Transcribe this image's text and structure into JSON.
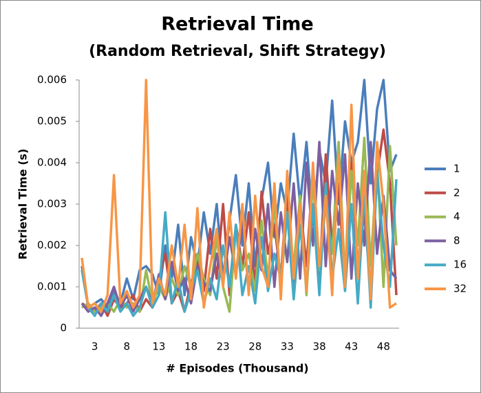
{
  "chart_data": {
    "type": "line",
    "title": "Retrieval Time",
    "subtitle": "(Random Retrieval, Shift Strategy)",
    "x_label": "# Episodes (Thousand)",
    "y_label": "Retrieval Time (s)",
    "categories": [
      null,
      null,
      "3",
      null,
      null,
      null,
      null,
      "8",
      null,
      null,
      null,
      null,
      "13",
      null,
      null,
      null,
      null,
      "18",
      null,
      null,
      null,
      null,
      "23",
      null,
      null,
      null,
      null,
      "28",
      null,
      null,
      null,
      null,
      "33",
      null,
      null,
      null,
      null,
      "38",
      null,
      null,
      null,
      null,
      "43",
      null,
      null,
      null,
      null,
      "48",
      null,
      null
    ],
    "ylim": [
      0,
      0.006
    ],
    "yticks": [
      0,
      0.001,
      0.002,
      0.003,
      0.004,
      0.005,
      0.006
    ],
    "grid": false,
    "legend": "right",
    "series": [
      {
        "name": "1",
        "color": "#4a7ebb",
        "values": [
          0.0015,
          0.0005,
          0.0006,
          0.0007,
          0.0005,
          0.0009,
          0.0006,
          0.0012,
          0.0007,
          0.0014,
          0.0015,
          0.0013,
          0.0008,
          0.002,
          0.0012,
          0.0025,
          0.0008,
          0.0022,
          0.0015,
          0.0028,
          0.0018,
          0.003,
          0.0012,
          0.0026,
          0.0037,
          0.002,
          0.0035,
          0.0015,
          0.0031,
          0.004,
          0.0022,
          0.0035,
          0.0028,
          0.0047,
          0.003,
          0.0045,
          0.0025,
          0.0043,
          0.0035,
          0.0055,
          0.003,
          0.005,
          0.004,
          0.0045,
          0.006,
          0.0035,
          0.0053,
          0.006,
          0.0038,
          0.0042
        ]
      },
      {
        "name": "2",
        "color": "#be4b48",
        "values": [
          0.0006,
          0.0005,
          0.0004,
          0.0006,
          0.0003,
          0.0007,
          0.0005,
          0.0006,
          0.0008,
          0.0004,
          0.0007,
          0.0005,
          0.0012,
          0.0018,
          0.0006,
          0.0009,
          0.0004,
          0.0011,
          0.0016,
          0.0009,
          0.0024,
          0.0012,
          0.003,
          0.0008,
          0.0025,
          0.0015,
          0.0028,
          0.001,
          0.0033,
          0.0018,
          0.0025,
          0.0012,
          0.0034,
          0.0008,
          0.003,
          0.0015,
          0.0038,
          0.0011,
          0.0042,
          0.002,
          0.0035,
          0.001,
          0.004,
          0.0015,
          0.0028,
          0.0009,
          0.0037,
          0.0048,
          0.0035,
          0.0008
        ]
      },
      {
        "name": "4",
        "color": "#98b954",
        "values": [
          0.0005,
          0.0006,
          0.0004,
          0.0005,
          0.0006,
          0.0004,
          0.0007,
          0.0005,
          0.0006,
          0.0004,
          0.0014,
          0.0006,
          0.001,
          0.0007,
          0.0012,
          0.0008,
          0.0015,
          0.001,
          0.0018,
          0.0012,
          0.0008,
          0.0022,
          0.001,
          0.0004,
          0.0024,
          0.0014,
          0.0018,
          0.0009,
          0.0026,
          0.0012,
          0.003,
          0.001,
          0.0028,
          0.0015,
          0.0032,
          0.0008,
          0.0036,
          0.0014,
          0.003,
          0.0018,
          0.0045,
          0.0012,
          0.0038,
          0.002,
          0.0046,
          0.0015,
          0.004,
          0.001,
          0.0044,
          0.002
        ]
      },
      {
        "name": "8",
        "color": "#7d60a0",
        "values": [
          0.0006,
          0.0004,
          0.0005,
          0.0003,
          0.0006,
          0.001,
          0.0005,
          0.0008,
          0.0004,
          0.0007,
          0.001,
          0.0006,
          0.0013,
          0.0007,
          0.0016,
          0.0009,
          0.0012,
          0.0006,
          0.0015,
          0.0011,
          0.0009,
          0.0018,
          0.0011,
          0.0022,
          0.0013,
          0.0026,
          0.0009,
          0.0024,
          0.0014,
          0.003,
          0.001,
          0.0028,
          0.0016,
          0.0035,
          0.0012,
          0.004,
          0.002,
          0.0045,
          0.0015,
          0.0038,
          0.0025,
          0.0042,
          0.0012,
          0.0035,
          0.002,
          0.0045,
          0.0018,
          0.0032,
          0.0014,
          0.0012
        ]
      },
      {
        "name": "16",
        "color": "#46aac5",
        "values": [
          0.0014,
          0.0005,
          0.0003,
          0.0006,
          0.0004,
          0.0008,
          0.0004,
          0.0006,
          0.0003,
          0.0005,
          0.001,
          0.0005,
          0.0008,
          0.0028,
          0.0006,
          0.0012,
          0.0004,
          0.0009,
          0.0014,
          0.0006,
          0.0012,
          0.0007,
          0.002,
          0.001,
          0.0025,
          0.0008,
          0.0015,
          0.0006,
          0.0022,
          0.0009,
          0.0018,
          0.0012,
          0.0028,
          0.0007,
          0.0025,
          0.001,
          0.003,
          0.0008,
          0.0035,
          0.0012,
          0.0024,
          0.0009,
          0.003,
          0.0006,
          0.0033,
          0.0005,
          0.0038,
          0.002,
          0.001,
          0.0036
        ]
      },
      {
        "name": "32",
        "color": "#f79646",
        "values": [
          0.0017,
          0.0005,
          0.0006,
          0.0004,
          0.0008,
          0.0037,
          0.0006,
          0.0009,
          0.0005,
          0.0008,
          0.006,
          0.0006,
          0.0012,
          0.0008,
          0.002,
          0.001,
          0.0025,
          0.0007,
          0.0029,
          0.0005,
          0.0015,
          0.0024,
          0.001,
          0.0028,
          0.0012,
          0.003,
          0.0008,
          0.0032,
          0.0015,
          0.001,
          0.0035,
          0.0007,
          0.0038,
          0.0012,
          0.003,
          0.0009,
          0.004,
          0.0015,
          0.0032,
          0.0008,
          0.0042,
          0.001,
          0.0054,
          0.0012,
          0.0038,
          0.0007,
          0.0045,
          0.003,
          0.0005,
          0.0006
        ]
      }
    ]
  }
}
